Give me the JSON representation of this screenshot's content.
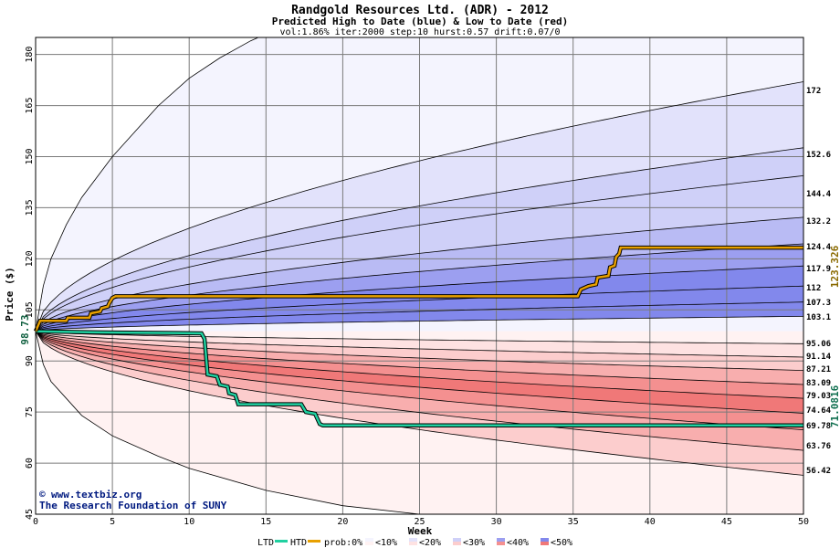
{
  "chart_data": {
    "type": "area",
    "title": "Randgold Resources Ltd. (ADR) - 2012",
    "subtitle": "Predicted High to Date (blue) &  Low to Date (red)",
    "params": "vol:1.86% iter:2000 step:10 hurst:0.57 drift:0.07/0",
    "xlabel": "Week",
    "ylabel": "Price ($)",
    "xlim": [
      0,
      50
    ],
    "ylim": [
      45,
      185
    ],
    "x_ticks": [
      0,
      5,
      10,
      15,
      20,
      25,
      30,
      35,
      40,
      45,
      50
    ],
    "y_ticks": [
      45,
      60,
      75,
      90,
      105,
      120,
      135,
      150,
      165,
      180
    ],
    "grid": true,
    "start_price": 98.73,
    "start_price_label": "98.73",
    "htd_final_label": "123.326",
    "ltd_final_label": "71.0816",
    "right_labels": [
      "172",
      "152.6",
      "144.4",
      "132.2",
      "124.4",
      "117.9",
      "112",
      "107.3",
      "103.1",
      "95.06",
      "91.14",
      "87.21",
      "83.09",
      "79.03",
      "74.64",
      "69.78",
      "63.76",
      "56.42"
    ],
    "outer_envelope_high": [
      [
        0,
        98.73
      ],
      [
        0.5,
        112
      ],
      [
        1,
        120
      ],
      [
        2,
        130
      ],
      [
        3,
        138
      ],
      [
        5,
        150
      ],
      [
        8,
        165
      ],
      [
        10,
        173
      ],
      [
        12,
        179
      ],
      [
        14,
        184
      ],
      [
        15,
        186
      ]
    ],
    "outer_envelope_low": [
      [
        0,
        98.73
      ],
      [
        0.5,
        89
      ],
      [
        1,
        84
      ],
      [
        2,
        79
      ],
      [
        3,
        74
      ],
      [
        5,
        68
      ],
      [
        8,
        62
      ],
      [
        10,
        58.5
      ],
      [
        15,
        52
      ],
      [
        20,
        47.5
      ],
      [
        25,
        45
      ]
    ],
    "high_quantiles_final": [
      172,
      152.6,
      144.4,
      132.2,
      124.4,
      117.9,
      112,
      107.3,
      103.1
    ],
    "low_quantiles_final": [
      95.06,
      91.14,
      87.21,
      83.09,
      79.03,
      74.64,
      69.78,
      63.76,
      56.42
    ],
    "htd_series": [
      [
        0,
        98.73
      ],
      [
        0.3,
        101.8
      ],
      [
        2,
        101.8
      ],
      [
        2.1,
        102.7
      ],
      [
        3.5,
        102.7
      ],
      [
        3.6,
        104
      ],
      [
        4.2,
        104.5
      ],
      [
        4.3,
        105.5
      ],
      [
        4.7,
        106
      ],
      [
        4.8,
        107
      ],
      [
        5,
        108.5
      ],
      [
        5.2,
        109
      ],
      [
        12,
        109
      ],
      [
        22,
        109
      ],
      [
        35.3,
        109
      ],
      [
        35.5,
        111
      ],
      [
        36,
        112
      ],
      [
        36.5,
        112.5
      ],
      [
        36.6,
        114.5
      ],
      [
        37.3,
        115
      ],
      [
        37.4,
        117.5
      ],
      [
        37.7,
        118
      ],
      [
        37.8,
        120.5
      ],
      [
        38,
        121.5
      ],
      [
        38.1,
        123.3
      ],
      [
        50,
        123.3
      ]
    ],
    "ltd_series": [
      [
        0,
        98.73
      ],
      [
        4,
        98.4
      ],
      [
        9,
        98.2
      ],
      [
        10.8,
        98.1
      ],
      [
        11,
        96.5
      ],
      [
        11.2,
        86
      ],
      [
        11.8,
        85.5
      ],
      [
        12,
        83
      ],
      [
        12.5,
        82.5
      ],
      [
        12.6,
        80.5
      ],
      [
        13,
        80
      ],
      [
        13.2,
        77.3
      ],
      [
        17.3,
        77.3
      ],
      [
        17.6,
        75
      ],
      [
        18.2,
        74.5
      ],
      [
        18.5,
        71.5
      ],
      [
        18.7,
        71.08
      ],
      [
        50,
        71.08
      ]
    ],
    "legend": {
      "ltd": "LTD",
      "htd": "HTD",
      "prob": "prob:0%",
      "items": [
        "<10%",
        "<20%",
        "<30%",
        "<40%",
        "<50%"
      ]
    },
    "colors": {
      "htd": "#e8a000",
      "ltd": "#20d0a0",
      "blue_bands": [
        "#f4f4fe",
        "#e2e2fb",
        "#cfd0f8",
        "#b9bbf4",
        "#9c9ff0",
        "#8288ec"
      ],
      "red_bands": [
        "#fff2f2",
        "#fee2e2",
        "#fccdcd",
        "#f8aeae",
        "#f49090",
        "#f07878"
      ],
      "grid": "#7a7a7a",
      "htd_label": "#8a6a00",
      "ltd_label": "#107050",
      "start_label": "#106040"
    },
    "credit_line1": "www.textbiz.org",
    "credit_line2": "The Research Foundation of SUNY"
  }
}
